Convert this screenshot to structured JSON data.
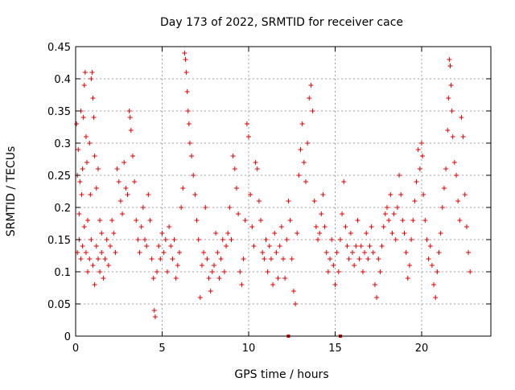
{
  "chart_data": {
    "type": "scatter",
    "title": "Day 173 of 2022, SRMTID for receiver cace",
    "xlabel": "GPS time / hours",
    "ylabel": "SRMTID / TECUs",
    "xlim": [
      0,
      24
    ],
    "ylim": [
      0,
      0.45
    ],
    "x_ticks": [
      0,
      5,
      10,
      15,
      20
    ],
    "x_tick_labels": [
      "0",
      "5",
      "10",
      "15",
      "20"
    ],
    "y_ticks": [
      0,
      0.05,
      0.1,
      0.15,
      0.2,
      0.25,
      0.3,
      0.35,
      0.4,
      0.45
    ],
    "y_tick_labels": [
      "0",
      "0.05",
      "0.1",
      "0.15",
      "0.2",
      "0.25",
      "0.3",
      "0.35",
      "0.4",
      "0.45"
    ],
    "grid": true,
    "marker": "+",
    "color": "#e00000",
    "series": [
      {
        "name": "SRMTID",
        "points": [
          [
            0.05,
            0.33
          ],
          [
            0.1,
            0.25
          ],
          [
            0.15,
            0.29
          ],
          [
            0.2,
            0.19
          ],
          [
            0.25,
            0.24
          ],
          [
            0.3,
            0.35
          ],
          [
            0.35,
            0.22
          ],
          [
            0.4,
            0.26
          ],
          [
            0.45,
            0.34
          ],
          [
            0.5,
            0.39
          ],
          [
            0.55,
            0.41
          ],
          [
            0.6,
            0.31
          ],
          [
            0.65,
            0.27
          ],
          [
            0.7,
            0.18
          ],
          [
            0.8,
            0.3
          ],
          [
            0.85,
            0.22
          ],
          [
            0.9,
            0.4
          ],
          [
            0.95,
            0.41
          ],
          [
            1.0,
            0.37
          ],
          [
            1.05,
            0.34
          ],
          [
            1.1,
            0.28
          ],
          [
            1.2,
            0.23
          ],
          [
            1.3,
            0.26
          ],
          [
            1.4,
            0.18
          ],
          [
            1.5,
            0.16
          ],
          [
            0.1,
            0.13
          ],
          [
            0.2,
            0.15
          ],
          [
            0.3,
            0.12
          ],
          [
            0.4,
            0.14
          ],
          [
            0.5,
            0.17
          ],
          [
            0.6,
            0.13
          ],
          [
            0.7,
            0.1
          ],
          [
            0.8,
            0.12
          ],
          [
            0.9,
            0.15
          ],
          [
            1.0,
            0.11
          ],
          [
            1.1,
            0.08
          ],
          [
            1.2,
            0.14
          ],
          [
            1.3,
            0.12
          ],
          [
            1.4,
            0.1
          ],
          [
            1.5,
            0.13
          ],
          [
            1.6,
            0.09
          ],
          [
            1.7,
            0.12
          ],
          [
            1.8,
            0.15
          ],
          [
            1.9,
            0.11
          ],
          [
            2.0,
            0.14
          ],
          [
            2.1,
            0.18
          ],
          [
            2.2,
            0.16
          ],
          [
            2.3,
            0.13
          ],
          [
            2.4,
            0.26
          ],
          [
            2.5,
            0.24
          ],
          [
            2.6,
            0.21
          ],
          [
            2.7,
            0.19
          ],
          [
            2.8,
            0.27
          ],
          [
            2.9,
            0.23
          ],
          [
            3.0,
            0.22
          ],
          [
            3.1,
            0.35
          ],
          [
            3.15,
            0.34
          ],
          [
            3.2,
            0.32
          ],
          [
            3.3,
            0.28
          ],
          [
            3.4,
            0.24
          ],
          [
            3.5,
            0.18
          ],
          [
            3.6,
            0.15
          ],
          [
            3.7,
            0.13
          ],
          [
            3.8,
            0.17
          ],
          [
            3.9,
            0.2
          ],
          [
            4.0,
            0.15
          ],
          [
            4.1,
            0.14
          ],
          [
            4.2,
            0.22
          ],
          [
            4.3,
            0.18
          ],
          [
            4.4,
            0.12
          ],
          [
            4.5,
            0.09
          ],
          [
            4.55,
            0.04
          ],
          [
            4.6,
            0.03
          ],
          [
            4.7,
            0.1
          ],
          [
            4.8,
            0.14
          ],
          [
            4.9,
            0.12
          ],
          [
            5.0,
            0.16
          ],
          [
            5.1,
            0.13
          ],
          [
            5.2,
            0.15
          ],
          [
            5.3,
            0.1
          ],
          [
            5.4,
            0.17
          ],
          [
            5.5,
            0.14
          ],
          [
            5.6,
            0.12
          ],
          [
            5.7,
            0.15
          ],
          [
            5.8,
            0.09
          ],
          [
            5.9,
            0.11
          ],
          [
            6.0,
            0.13
          ],
          [
            6.1,
            0.2
          ],
          [
            6.2,
            0.23
          ],
          [
            6.3,
            0.44
          ],
          [
            6.35,
            0.43
          ],
          [
            6.4,
            0.41
          ],
          [
            6.45,
            0.38
          ],
          [
            6.5,
            0.35
          ],
          [
            6.55,
            0.33
          ],
          [
            6.6,
            0.3
          ],
          [
            6.7,
            0.28
          ],
          [
            6.8,
            0.25
          ],
          [
            6.9,
            0.22
          ],
          [
            7.0,
            0.18
          ],
          [
            7.1,
            0.15
          ],
          [
            7.2,
            0.06
          ],
          [
            7.3,
            0.11
          ],
          [
            7.4,
            0.13
          ],
          [
            7.5,
            0.2
          ],
          [
            7.6,
            0.12
          ],
          [
            7.7,
            0.09
          ],
          [
            7.8,
            0.07
          ],
          [
            7.9,
            0.1
          ],
          [
            8.0,
            0.11
          ],
          [
            8.1,
            0.16
          ],
          [
            8.2,
            0.13
          ],
          [
            8.3,
            0.09
          ],
          [
            8.4,
            0.12
          ],
          [
            8.5,
            0.15
          ],
          [
            8.6,
            0.1
          ],
          [
            8.7,
            0.14
          ],
          [
            8.8,
            0.16
          ],
          [
            8.9,
            0.2
          ],
          [
            9.0,
            0.15
          ],
          [
            9.1,
            0.28
          ],
          [
            9.2,
            0.26
          ],
          [
            9.3,
            0.23
          ],
          [
            9.4,
            0.19
          ],
          [
            9.5,
            0.1
          ],
          [
            9.6,
            0.08
          ],
          [
            9.7,
            0.12
          ],
          [
            9.8,
            0.18
          ],
          [
            9.9,
            0.33
          ],
          [
            10.0,
            0.31
          ],
          [
            10.1,
            0.22
          ],
          [
            10.2,
            0.17
          ],
          [
            10.3,
            0.14
          ],
          [
            10.4,
            0.27
          ],
          [
            10.5,
            0.26
          ],
          [
            10.6,
            0.21
          ],
          [
            10.7,
            0.18
          ],
          [
            10.8,
            0.13
          ],
          [
            10.9,
            0.12
          ],
          [
            11.0,
            0.15
          ],
          [
            11.1,
            0.1
          ],
          [
            11.2,
            0.14
          ],
          [
            11.3,
            0.12
          ],
          [
            11.4,
            0.08
          ],
          [
            11.5,
            0.16
          ],
          [
            11.6,
            0.13
          ],
          [
            11.7,
            0.09
          ],
          [
            11.8,
            0.14
          ],
          [
            11.9,
            0.17
          ],
          [
            12.0,
            0.12
          ],
          [
            12.1,
            0.09
          ],
          [
            12.2,
            0.15
          ],
          [
            12.3,
            0.21
          ],
          [
            12.4,
            0.18
          ],
          [
            12.5,
            0.12
          ],
          [
            12.6,
            0.07
          ],
          [
            12.7,
            0.05
          ],
          [
            12.8,
            0.16
          ],
          [
            12.9,
            0.25
          ],
          [
            13.0,
            0.29
          ],
          [
            13.1,
            0.33
          ],
          [
            13.2,
            0.27
          ],
          [
            13.3,
            0.24
          ],
          [
            13.4,
            0.3
          ],
          [
            13.5,
            0.37
          ],
          [
            13.6,
            0.39
          ],
          [
            13.7,
            0.35
          ],
          [
            13.8,
            0.21
          ],
          [
            13.9,
            0.17
          ],
          [
            14.0,
            0.15
          ],
          [
            14.1,
            0.16
          ],
          [
            14.2,
            0.19
          ],
          [
            14.3,
            0.22
          ],
          [
            14.4,
            0.17
          ],
          [
            14.5,
            0.13
          ],
          [
            14.6,
            0.1
          ],
          [
            14.7,
            0.12
          ],
          [
            14.8,
            0.15
          ],
          [
            14.9,
            0.11
          ],
          [
            15.0,
            0.08
          ],
          [
            15.1,
            0.13
          ],
          [
            15.2,
            0.1
          ],
          [
            15.3,
            0.15
          ],
          [
            15.4,
            0.19
          ],
          [
            15.5,
            0.24
          ],
          [
            15.6,
            0.17
          ],
          [
            15.7,
            0.14
          ],
          [
            15.8,
            0.12
          ],
          [
            15.9,
            0.16
          ],
          [
            16.0,
            0.13
          ],
          [
            16.1,
            0.11
          ],
          [
            16.2,
            0.14
          ],
          [
            16.3,
            0.18
          ],
          [
            16.4,
            0.12
          ],
          [
            16.5,
            0.14
          ],
          [
            16.6,
            0.1
          ],
          [
            16.7,
            0.13
          ],
          [
            16.8,
            0.16
          ],
          [
            16.9,
            0.12
          ],
          [
            17.0,
            0.14
          ],
          [
            17.1,
            0.17
          ],
          [
            17.2,
            0.13
          ],
          [
            17.3,
            0.08
          ],
          [
            17.4,
            0.06
          ],
          [
            17.5,
            0.12
          ],
          [
            17.6,
            0.1
          ],
          [
            17.7,
            0.14
          ],
          [
            17.8,
            0.17
          ],
          [
            17.9,
            0.19
          ],
          [
            18.0,
            0.2
          ],
          [
            18.1,
            0.18
          ],
          [
            18.2,
            0.22
          ],
          [
            18.3,
            0.16
          ],
          [
            18.4,
            0.19
          ],
          [
            18.5,
            0.15
          ],
          [
            18.6,
            0.2
          ],
          [
            18.7,
            0.25
          ],
          [
            18.8,
            0.22
          ],
          [
            18.9,
            0.18
          ],
          [
            19.0,
            0.16
          ],
          [
            19.1,
            0.13
          ],
          [
            19.2,
            0.09
          ],
          [
            19.3,
            0.11
          ],
          [
            19.4,
            0.15
          ],
          [
            19.5,
            0.18
          ],
          [
            19.6,
            0.21
          ],
          [
            19.7,
            0.24
          ],
          [
            19.8,
            0.29
          ],
          [
            19.9,
            0.26
          ],
          [
            20.0,
            0.3
          ],
          [
            20.05,
            0.28
          ],
          [
            20.1,
            0.22
          ],
          [
            20.2,
            0.18
          ],
          [
            20.3,
            0.15
          ],
          [
            20.4,
            0.12
          ],
          [
            20.5,
            0.14
          ],
          [
            20.6,
            0.11
          ],
          [
            20.7,
            0.08
          ],
          [
            20.8,
            0.06
          ],
          [
            20.9,
            0.1
          ],
          [
            21.0,
            0.13
          ],
          [
            21.1,
            0.16
          ],
          [
            21.2,
            0.2
          ],
          [
            21.3,
            0.23
          ],
          [
            21.4,
            0.26
          ],
          [
            21.5,
            0.32
          ],
          [
            21.55,
            0.37
          ],
          [
            21.6,
            0.43
          ],
          [
            21.65,
            0.42
          ],
          [
            21.7,
            0.39
          ],
          [
            21.75,
            0.35
          ],
          [
            21.8,
            0.31
          ],
          [
            21.9,
            0.27
          ],
          [
            22.0,
            0.25
          ],
          [
            22.1,
            0.21
          ],
          [
            22.2,
            0.18
          ],
          [
            22.3,
            0.34
          ],
          [
            22.4,
            0.31
          ],
          [
            22.5,
            0.22
          ],
          [
            22.6,
            0.17
          ],
          [
            22.7,
            0.13
          ],
          [
            22.8,
            0.1
          ]
        ]
      }
    ],
    "markers_on_x_axis": [
      12.3,
      15.3
    ]
  }
}
